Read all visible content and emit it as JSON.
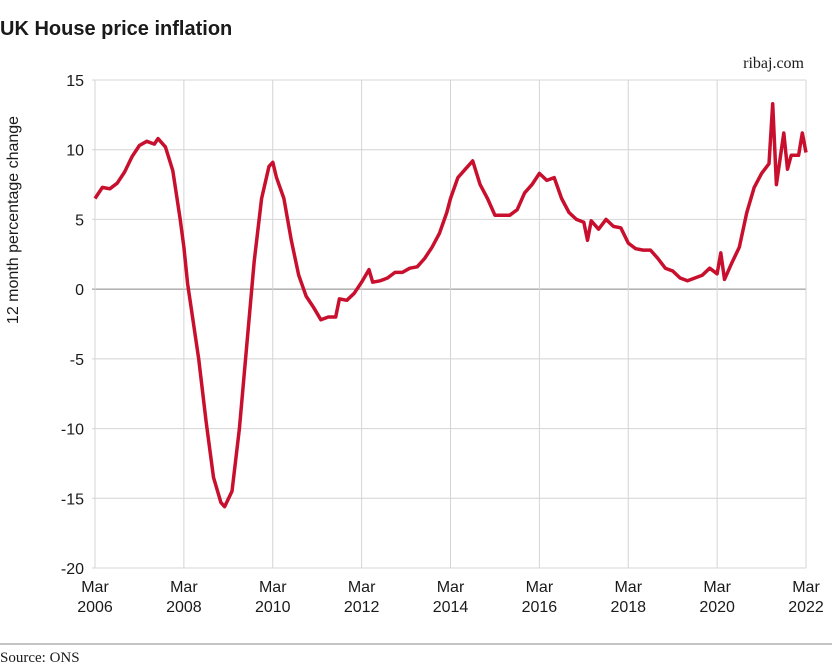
{
  "chart_data": {
    "type": "line",
    "title": "UK House price inflation",
    "source_site": "ribaj.com",
    "y_label": "12 month percentage change",
    "source": "Source: ONS",
    "x": [
      "2006-03",
      "2006-05",
      "2006-07",
      "2006-09",
      "2006-11",
      "2007-01",
      "2007-03",
      "2007-05",
      "2007-07",
      "2007-08",
      "2007-10",
      "2007-12",
      "2008-02",
      "2008-03",
      "2008-04",
      "2008-07",
      "2008-09",
      "2008-11",
      "2009-01",
      "2009-02",
      "2009-04",
      "2009-06",
      "2009-08",
      "2009-10",
      "2009-12",
      "2010-02",
      "2010-03",
      "2010-04",
      "2010-06",
      "2010-08",
      "2010-10",
      "2010-12",
      "2011-02",
      "2011-04",
      "2011-06",
      "2011-08",
      "2011-09",
      "2011-11",
      "2012-01",
      "2012-03",
      "2012-05",
      "2012-06",
      "2012-08",
      "2012-10",
      "2012-12",
      "2013-02",
      "2013-04",
      "2013-06",
      "2013-08",
      "2013-10",
      "2013-12",
      "2014-02",
      "2014-03",
      "2014-05",
      "2014-07",
      "2014-09",
      "2014-11",
      "2015-01",
      "2015-03",
      "2015-05",
      "2015-07",
      "2015-09",
      "2015-11",
      "2016-01",
      "2016-03",
      "2016-05",
      "2016-07",
      "2016-09",
      "2016-11",
      "2017-01",
      "2017-03",
      "2017-04",
      "2017-05",
      "2017-07",
      "2017-09",
      "2017-11",
      "2018-01",
      "2018-03",
      "2018-05",
      "2018-07",
      "2018-09",
      "2018-11",
      "2019-01",
      "2019-03",
      "2019-05",
      "2019-07",
      "2019-09",
      "2019-11",
      "2020-01",
      "2020-03",
      "2020-04",
      "2020-05",
      "2020-07",
      "2020-09",
      "2020-11",
      "2021-01",
      "2021-03",
      "2021-05",
      "2021-06",
      "2021-07",
      "2021-09",
      "2021-10",
      "2021-11",
      "2022-01",
      "2022-02",
      "2022-03"
    ],
    "series": [
      {
        "name": "UK house price inflation",
        "color": "#c8102e",
        "values": [
          6.5,
          7.3,
          7.2,
          7.6,
          8.4,
          9.5,
          10.3,
          10.6,
          10.4,
          10.8,
          10.2,
          8.5,
          5.0,
          3.0,
          0.4,
          -5.0,
          -9.5,
          -13.5,
          -15.3,
          -15.6,
          -14.5,
          -10.0,
          -4.0,
          2.0,
          6.5,
          8.8,
          9.1,
          8.0,
          6.5,
          3.5,
          1.0,
          -0.5,
          -1.3,
          -2.2,
          -2.0,
          -2.0,
          -0.7,
          -0.8,
          -0.3,
          0.5,
          1.4,
          0.5,
          0.6,
          0.8,
          1.2,
          1.2,
          1.5,
          1.6,
          2.2,
          3.0,
          4.0,
          5.5,
          6.5,
          8.0,
          8.6,
          9.2,
          7.5,
          6.5,
          5.3,
          5.3,
          5.3,
          5.7,
          6.9,
          7.5,
          8.3,
          7.8,
          8.0,
          6.5,
          5.5,
          5.0,
          4.8,
          3.5,
          4.9,
          4.3,
          5.0,
          4.5,
          4.4,
          3.3,
          2.9,
          2.8,
          2.8,
          2.2,
          1.5,
          1.3,
          0.8,
          0.6,
          0.8,
          1.0,
          1.5,
          1.1,
          2.6,
          0.7,
          1.9,
          3.0,
          5.5,
          7.3,
          8.3,
          9.0,
          13.3,
          7.5,
          11.2,
          8.6,
          9.6,
          9.6,
          11.2,
          9.8
        ]
      }
    ],
    "xlim": [
      "2006-03",
      "2022-03"
    ],
    "xticks": [
      {
        "value": "2006-03",
        "label": "Mar 2006"
      },
      {
        "value": "2008-03",
        "label": "Mar 2008"
      },
      {
        "value": "2010-03",
        "label": "Mar 2010"
      },
      {
        "value": "2012-03",
        "label": "Mar 2012"
      },
      {
        "value": "2014-03",
        "label": "Mar 2014"
      },
      {
        "value": "2016-03",
        "label": "Mar 2016"
      },
      {
        "value": "2018-03",
        "label": "Mar 2018"
      },
      {
        "value": "2020-03",
        "label": "Mar 2020"
      },
      {
        "value": "2022-03",
        "label": "Mar 2022"
      }
    ],
    "ylim": [
      -20,
      15
    ],
    "yticks": [
      -20,
      -15,
      -10,
      -5,
      0,
      5,
      10,
      15
    ],
    "grid": true
  }
}
